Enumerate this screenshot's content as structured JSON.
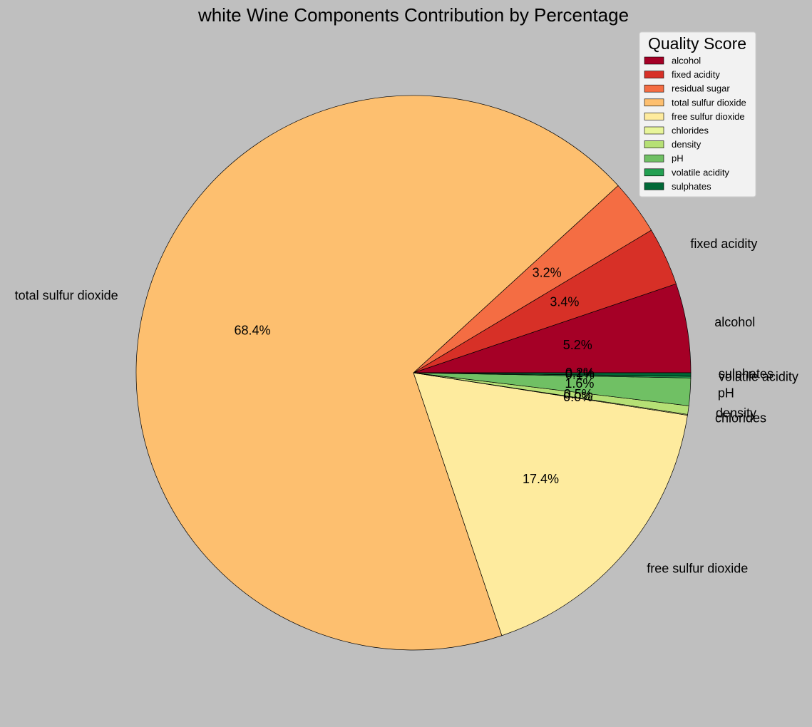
{
  "chart_data": {
    "type": "pie",
    "title": "white Wine Components Contribution by Percentage",
    "legend_title": "Quality Score",
    "legend_placement": "top-right",
    "start_angle_deg": 0,
    "direction": "counterclockwise",
    "slices": [
      {
        "label": "alcohol",
        "pct_text": "5.2%",
        "value": 5.2,
        "color": "#a50026"
      },
      {
        "label": "fixed acidity",
        "pct_text": "3.4%",
        "value": 3.4,
        "color": "#d73027"
      },
      {
        "label": "residual sugar",
        "pct_text": "3.2%",
        "value": 3.2,
        "color": "#f46d43"
      },
      {
        "label": "total sulfur dioxide",
        "pct_text": "68.4%",
        "value": 68.4,
        "color": "#fdbf6f"
      },
      {
        "label": "free sulfur dioxide",
        "pct_text": "17.4%",
        "value": 17.4,
        "color": "#feeb9e"
      },
      {
        "label": "chlorides",
        "pct_text": "0.0%",
        "value": 0.05,
        "color": "#e8f59a"
      },
      {
        "label": "density",
        "pct_text": "0.5%",
        "value": 0.5,
        "color": "#b6e075"
      },
      {
        "label": "pH",
        "pct_text": "1.6%",
        "value": 1.6,
        "color": "#70c064"
      },
      {
        "label": "volatile acidity",
        "pct_text": "0.1%",
        "value": 0.1,
        "color": "#23a052"
      },
      {
        "label": "sulphates",
        "pct_text": "0.2%",
        "value": 0.2,
        "color": "#006837"
      }
    ],
    "legend_order": [
      "alcohol",
      "fixed acidity",
      "residual sugar",
      "total sulfur dioxide",
      "free sulfur dioxide",
      "chlorides",
      "density",
      "pH",
      "volatile acidity",
      "sulphates"
    ]
  }
}
